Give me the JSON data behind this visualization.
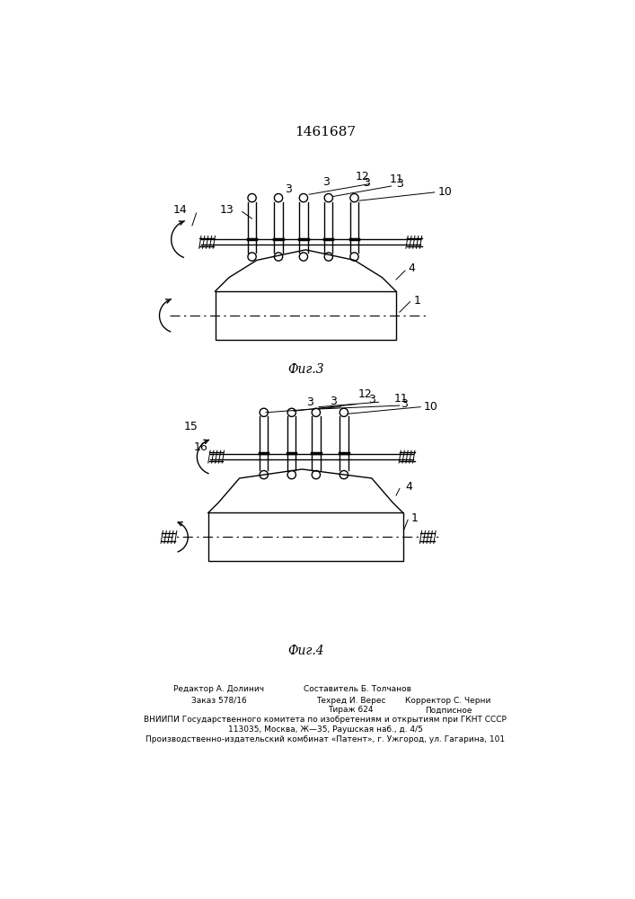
{
  "title": "1461687",
  "title_fontsize": 11,
  "fig3_caption": "Фиг.3",
  "fig4_caption": "Фиг.4",
  "bg_color": "#ffffff",
  "line_color": "#000000",
  "footer_col1_line1": "Редактор А. Долинич",
  "footer_col1_line2": "Заказ 578/16",
  "footer_col2_line1": "Составитель Б. Толчанов",
  "footer_col2_line2": "Техред И. Верес",
  "footer_col2_line3": "Тираж 624",
  "footer_col3_line2": "Корректор С. Черни",
  "footer_col3_line3": "Подписное",
  "footer_line4": "ВНИИПИ Государственного комитета по изобретениям и открытиям при ГКНТ СССР",
  "footer_line5": "113035, Москва, Ж—35, Раушская наб., д. 4/5",
  "footer_line6": "Производственно-издательский комбинат «Патент», г. Ужгород, ул. Гагарина, 101"
}
